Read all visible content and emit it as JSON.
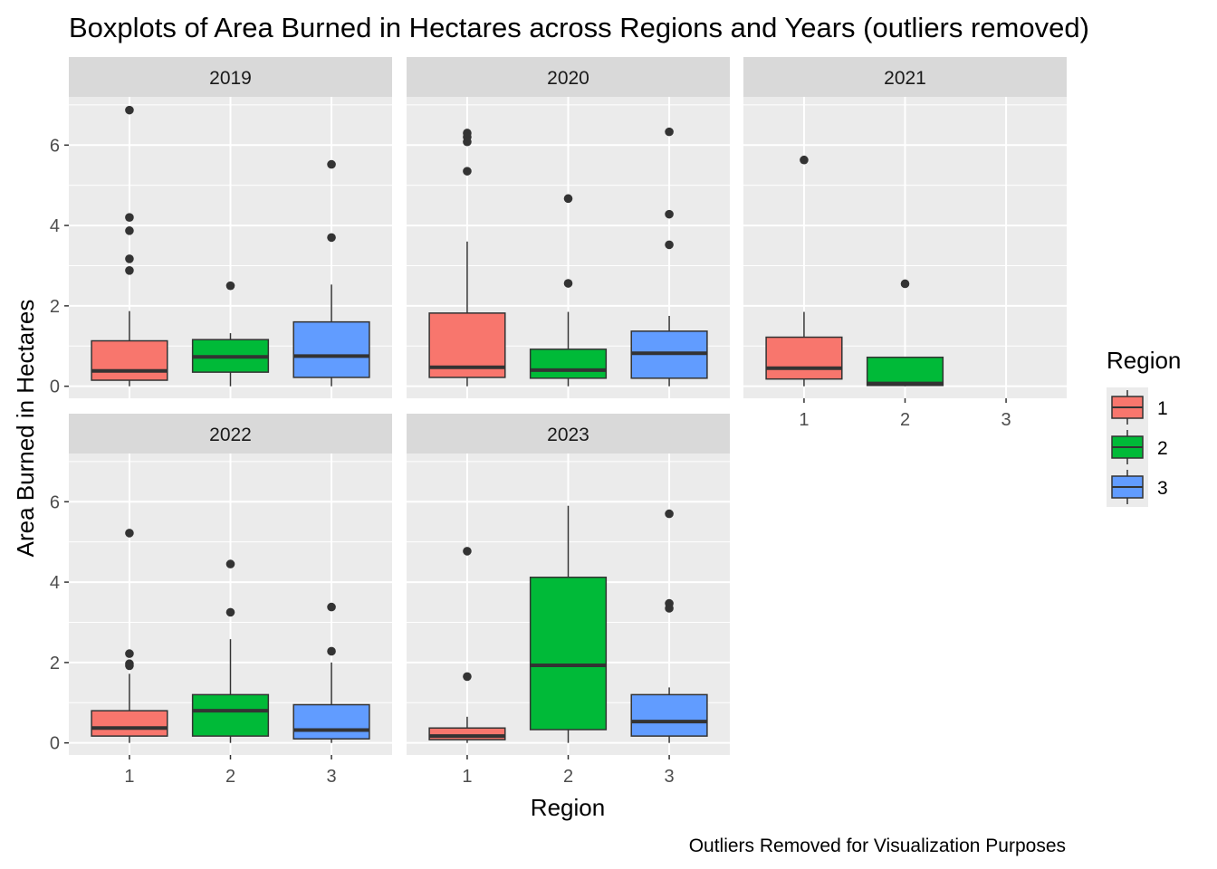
{
  "chart_data": {
    "type": "boxplot",
    "title": "Boxplots of Area Burned in Hectares across Regions and Years (outliers removed)",
    "xlabel": "Region",
    "ylabel": "Area Burned in Hectares",
    "caption": "Outliers Removed for Visualization Purposes",
    "categories": [
      "1",
      "2",
      "3"
    ],
    "y_ticks": [
      "0",
      "2",
      "4",
      "6"
    ],
    "ylim": [
      -0.3,
      7.2
    ],
    "legend": {
      "title": "Region",
      "position": "right",
      "entries": [
        {
          "label": "1",
          "color": "#F8766D"
        },
        {
          "label": "2",
          "color": "#00BA38"
        },
        {
          "label": "3",
          "color": "#619CFF"
        }
      ]
    },
    "facets": [
      {
        "label": "2019",
        "boxes": [
          {
            "region": "1",
            "min": 0.0,
            "q1": 0.15,
            "median": 0.38,
            "q3": 1.13,
            "max": 1.87,
            "outliers": [
              6.87,
              4.2,
              3.87,
              3.17,
              2.88
            ]
          },
          {
            "region": "2",
            "min": 0.0,
            "q1": 0.35,
            "median": 0.73,
            "q3": 1.16,
            "max": 1.32,
            "outliers": [
              2.5
            ]
          },
          {
            "region": "3",
            "min": 0.0,
            "q1": 0.22,
            "median": 0.75,
            "q3": 1.6,
            "max": 2.53,
            "outliers": [
              5.52,
              3.7
            ]
          }
        ]
      },
      {
        "label": "2020",
        "boxes": [
          {
            "region": "1",
            "min": 0.0,
            "q1": 0.22,
            "median": 0.47,
            "q3": 1.82,
            "max": 3.6,
            "outliers": [
              6.3,
              6.2,
              6.08,
              5.35
            ]
          },
          {
            "region": "2",
            "min": 0.0,
            "q1": 0.2,
            "median": 0.4,
            "q3": 0.92,
            "max": 1.85,
            "outliers": [
              4.67,
              2.56
            ]
          },
          {
            "region": "3",
            "min": 0.0,
            "q1": 0.2,
            "median": 0.82,
            "q3": 1.37,
            "max": 1.75,
            "outliers": [
              6.33,
              4.28,
              3.52
            ]
          }
        ]
      },
      {
        "label": "2021",
        "boxes": [
          {
            "region": "1",
            "min": 0.0,
            "q1": 0.18,
            "median": 0.45,
            "q3": 1.22,
            "max": 1.85,
            "outliers": [
              5.63
            ]
          },
          {
            "region": "2",
            "min": 0.0,
            "q1": 0.02,
            "median": 0.07,
            "q3": 0.72,
            "max": 0.72,
            "outliers": [
              2.55
            ]
          }
        ]
      },
      {
        "label": "2022",
        "boxes": [
          {
            "region": "1",
            "min": 0.0,
            "q1": 0.17,
            "median": 0.37,
            "q3": 0.8,
            "max": 1.72,
            "outliers": [
              5.22,
              2.22,
              1.97,
              1.92
            ]
          },
          {
            "region": "2",
            "min": 0.0,
            "q1": 0.17,
            "median": 0.8,
            "q3": 1.2,
            "max": 2.58,
            "outliers": [
              4.45,
              3.25
            ]
          },
          {
            "region": "3",
            "min": 0.0,
            "q1": 0.1,
            "median": 0.32,
            "q3": 0.95,
            "max": 2.0,
            "outliers": [
              3.38,
              2.28
            ]
          }
        ]
      },
      {
        "label": "2023",
        "boxes": [
          {
            "region": "1",
            "min": 0.0,
            "q1": 0.08,
            "median": 0.17,
            "q3": 0.37,
            "max": 0.65,
            "outliers": [
              4.77,
              1.65
            ]
          },
          {
            "region": "2",
            "min": 0.0,
            "q1": 0.33,
            "median": 1.93,
            "q3": 4.12,
            "max": 5.9,
            "outliers": []
          },
          {
            "region": "3",
            "min": 0.0,
            "q1": 0.17,
            "median": 0.53,
            "q3": 1.2,
            "max": 1.38,
            "outliers": [
              5.7,
              3.47,
              3.35
            ]
          }
        ]
      }
    ]
  }
}
